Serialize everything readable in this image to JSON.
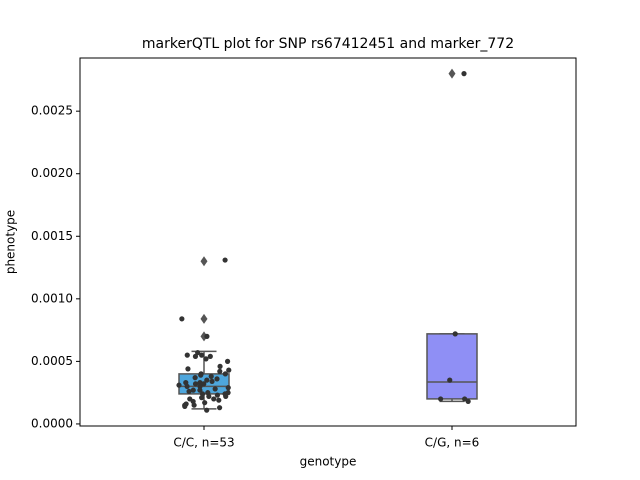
{
  "chart_data": {
    "type": "box",
    "title": "markerQTL plot for SNP rs67412451 and marker_772",
    "x_label": "genotype",
    "y_label": "phenotype",
    "categories": [
      "C/C, n=53",
      "C/G, n=6"
    ],
    "colors": [
      "#4ea6dc",
      "#8f8ff5"
    ],
    "boxes": [
      {
        "whislo": 0.00012,
        "q1": 0.00024,
        "med": 0.0003,
        "q3": 0.0004,
        "whishi": 0.00058,
        "fliers": [
          0.0013,
          0.00084,
          0.0007
        ]
      },
      {
        "whislo": 0.00018,
        "q1": 0.0002,
        "med": 0.000335,
        "q3": 0.00072,
        "whishi": 0.00072,
        "fliers": [
          0.0028
        ]
      }
    ],
    "points": [
      [
        0.00131,
        0.00084,
        0.0007,
        0.00057,
        0.00055,
        0.00054,
        0.00055,
        0.00054,
        0.00052,
        0.0005,
        0.00046,
        0.00044,
        0.00043,
        0.00042,
        0.0004,
        0.0004,
        0.00039,
        0.00038,
        0.00037,
        0.00036,
        0.00035,
        0.00034,
        0.00033,
        0.00033,
        0.00032,
        0.00032,
        0.00031,
        0.0003,
        0.0003,
        0.00029,
        0.00028,
        0.00027,
        0.00027,
        0.00026,
        0.00025,
        0.00025,
        0.00024,
        0.00024,
        0.00023,
        0.00022,
        0.00022,
        0.00021,
        0.0002,
        0.0002,
        0.00019,
        0.00018,
        0.00017,
        0.00016,
        0.00015,
        0.00015,
        0.00014,
        0.00013,
        0.00011
      ],
      [
        0.0028,
        0.00072,
        0.00035,
        0.0002,
        0.00018,
        0.0002
      ]
    ],
    "ylim": [
      -1.65e-05,
      0.002925
    ],
    "yticks": [
      {
        "value": 0,
        "label": "0.0000"
      },
      {
        "value": 0.0005,
        "label": "0.0005"
      },
      {
        "value": 0.001,
        "label": "0.0010"
      },
      {
        "value": 0.0015,
        "label": "0.0015"
      },
      {
        "value": 0.002,
        "label": "0.0020"
      },
      {
        "value": 0.0025,
        "label": "0.0025"
      }
    ]
  }
}
